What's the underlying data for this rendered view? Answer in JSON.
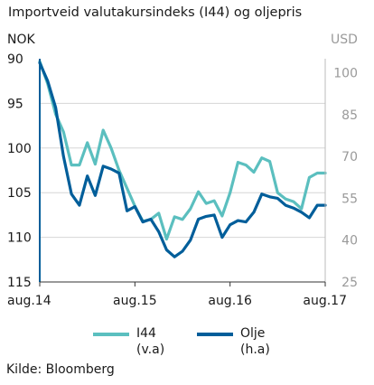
{
  "title": "Importveid valutakursindeks (I44) og oljepris",
  "chart_data": {
    "type": "line",
    "title": "Importveid valutakursindeks (I44) og oljepris",
    "left_axis": {
      "label": "NOK",
      "ticks": [
        90,
        95,
        100,
        105,
        110,
        115
      ],
      "range": [
        90,
        115
      ],
      "inverted": true
    },
    "right_axis": {
      "label": "USD",
      "ticks": [
        100,
        85,
        70,
        55,
        40,
        25
      ],
      "range": [
        25,
        105
      ]
    },
    "x_ticks": [
      "aug.14",
      "aug.15",
      "aug.16",
      "aug.17"
    ],
    "x_range": [
      0,
      36
    ],
    "grid": true,
    "legend_position": "bottom",
    "series": [
      {
        "name": "I44",
        "sub_label": "(v.a)",
        "axis": "left",
        "color": "#5bbfbf",
        "x": [
          0,
          1,
          2,
          3,
          4,
          5,
          6,
          7,
          8,
          9,
          10,
          11,
          12,
          13,
          14,
          15,
          16,
          17,
          18,
          19,
          20,
          21,
          22,
          23,
          24,
          25,
          26,
          27,
          28,
          29,
          30,
          31,
          32,
          33,
          34,
          35,
          36
        ],
        "y": [
          90.3,
          92.8,
          96.2,
          98.2,
          101.9,
          101.9,
          99.4,
          101.8,
          98.0,
          100.0,
          102.5,
          104.5,
          106.5,
          108.2,
          108.0,
          107.3,
          110.2,
          107.7,
          108.0,
          106.8,
          104.9,
          106.2,
          105.9,
          107.6,
          105.0,
          101.6,
          101.9,
          102.7,
          101.1,
          101.5,
          105.0,
          105.7,
          106.0,
          106.8,
          103.3,
          102.8,
          102.8
        ]
      },
      {
        "name": "Olje",
        "sub_label": "(h.a)",
        "axis": "right",
        "color": "#005e9a",
        "x": [
          0,
          1,
          2,
          3,
          4,
          5,
          6,
          7,
          8,
          9,
          10,
          11,
          12,
          13,
          14,
          15,
          16,
          17,
          18,
          19,
          20,
          21,
          22,
          23,
          24,
          25,
          26,
          27,
          28,
          29,
          30,
          31,
          32,
          33,
          34,
          35,
          36
        ],
        "y": [
          103.5,
          97.0,
          87.5,
          70.0,
          56.5,
          52.5,
          63.0,
          56.0,
          66.5,
          65.5,
          64.0,
          50.5,
          52.0,
          46.5,
          47.5,
          43.0,
          36.5,
          34.0,
          36.0,
          40.0,
          47.5,
          48.5,
          49.0,
          41.0,
          45.5,
          47.0,
          46.5,
          50.0,
          56.5,
          55.5,
          55.0,
          52.5,
          51.5,
          50.0,
          48.0,
          52.5,
          52.5
        ]
      }
    ]
  },
  "source": "Kilde: Bloomberg"
}
